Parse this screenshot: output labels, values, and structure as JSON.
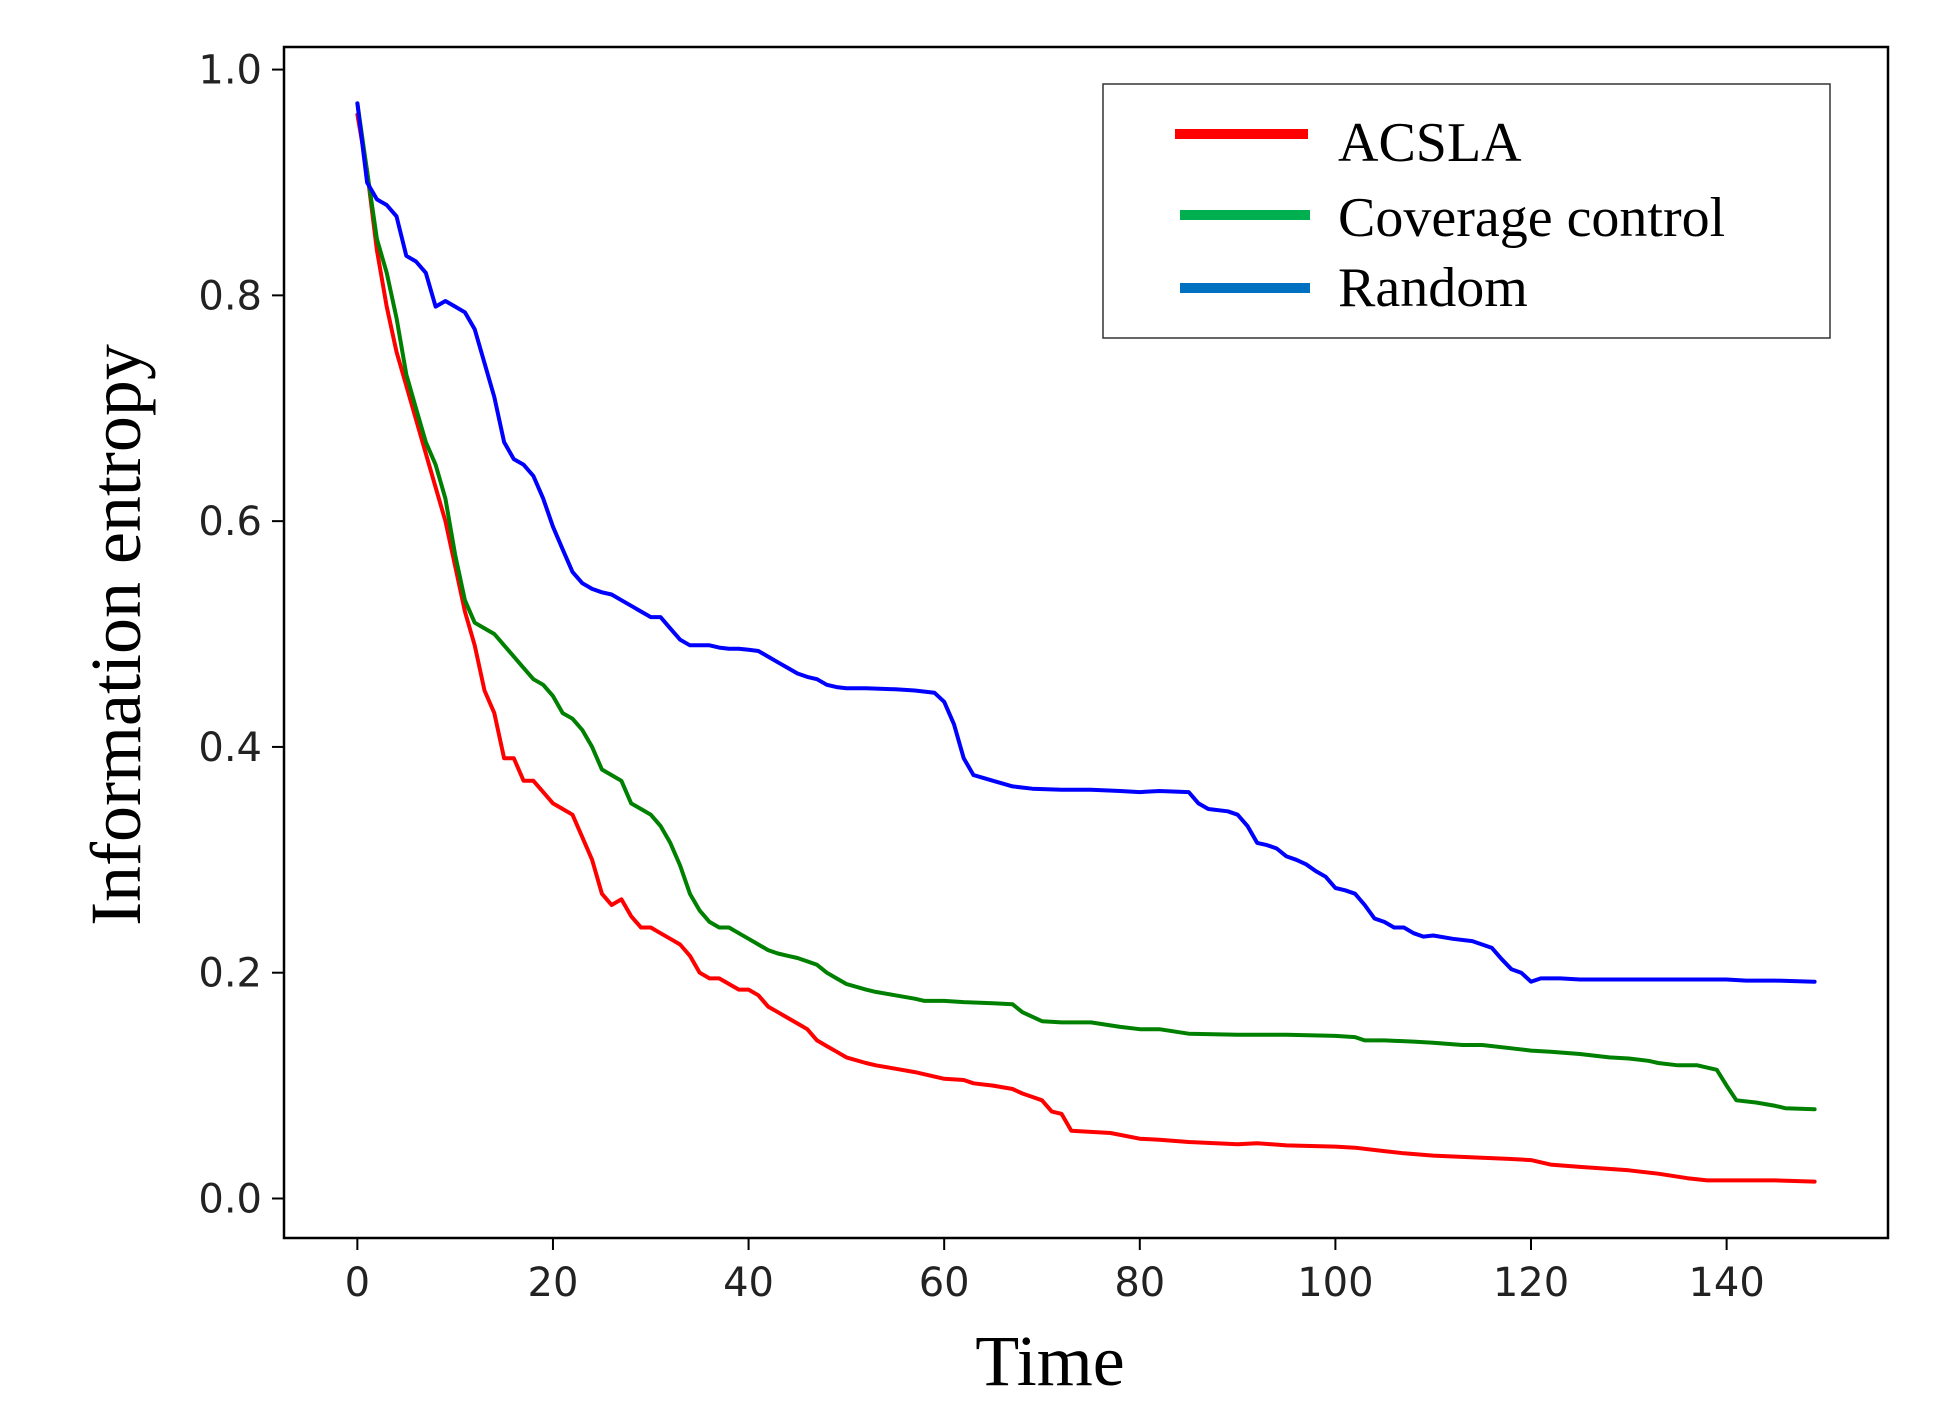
{
  "chart_data": {
    "type": "line",
    "title": "",
    "xlabel": "Time",
    "ylabel": "Information entropy",
    "xlim": [
      -7.5,
      156.5
    ],
    "ylim": [
      -0.035,
      1.02
    ],
    "xticks": [
      0,
      20,
      40,
      60,
      80,
      100,
      120,
      140
    ],
    "yticks": [
      0.0,
      0.2,
      0.4,
      0.6,
      0.8,
      1.0
    ],
    "xtick_labels": [
      "0",
      "20",
      "40",
      "60",
      "80",
      "100",
      "120",
      "140"
    ],
    "ytick_labels": [
      "0.0",
      "0.2",
      "0.4",
      "0.6",
      "0.8",
      "1.0"
    ],
    "grid": false,
    "legend_position": "top-right",
    "series": [
      {
        "name": "ACSLA",
        "color": "#ff0000",
        "points": [
          [
            0,
            0.96
          ],
          [
            1,
            0.91
          ],
          [
            2,
            0.84
          ],
          [
            3,
            0.79
          ],
          [
            4,
            0.75
          ],
          [
            5,
            0.72
          ],
          [
            6,
            0.69
          ],
          [
            7,
            0.66
          ],
          [
            8,
            0.63
          ],
          [
            9,
            0.6
          ],
          [
            10,
            0.56
          ],
          [
            11,
            0.52
          ],
          [
            12,
            0.49
          ],
          [
            13,
            0.45
          ],
          [
            14,
            0.43
          ],
          [
            15,
            0.39
          ],
          [
            16,
            0.39
          ],
          [
            17,
            0.37
          ],
          [
            18,
            0.37
          ],
          [
            19,
            0.36
          ],
          [
            20,
            0.35
          ],
          [
            21,
            0.345
          ],
          [
            22,
            0.34
          ],
          [
            23,
            0.32
          ],
          [
            24,
            0.3
          ],
          [
            25,
            0.27
          ],
          [
            26,
            0.26
          ],
          [
            27,
            0.265
          ],
          [
            28,
            0.25
          ],
          [
            29,
            0.24
          ],
          [
            30,
            0.24
          ],
          [
            31,
            0.235
          ],
          [
            32,
            0.23
          ],
          [
            33,
            0.225
          ],
          [
            34,
            0.215
          ],
          [
            35,
            0.2
          ],
          [
            36,
            0.195
          ],
          [
            37,
            0.195
          ],
          [
            38,
            0.19
          ],
          [
            39,
            0.185
          ],
          [
            40,
            0.185
          ],
          [
            41,
            0.18
          ],
          [
            42,
            0.17
          ],
          [
            43,
            0.165
          ],
          [
            44,
            0.16
          ],
          [
            45,
            0.155
          ],
          [
            46,
            0.15
          ],
          [
            47,
            0.14
          ],
          [
            48,
            0.135
          ],
          [
            49,
            0.13
          ],
          [
            50,
            0.125
          ],
          [
            52,
            0.12
          ],
          [
            53,
            0.118
          ],
          [
            55,
            0.115
          ],
          [
            57,
            0.112
          ],
          [
            58,
            0.11
          ],
          [
            60,
            0.106
          ],
          [
            62,
            0.105
          ],
          [
            63,
            0.102
          ],
          [
            65,
            0.1
          ],
          [
            67,
            0.097
          ],
          [
            68,
            0.093
          ],
          [
            69,
            0.09
          ],
          [
            70,
            0.087
          ],
          [
            71,
            0.077
          ],
          [
            72,
            0.075
          ],
          [
            73,
            0.06
          ],
          [
            75,
            0.059
          ],
          [
            77,
            0.058
          ],
          [
            80,
            0.053
          ],
          [
            82,
            0.052
          ],
          [
            85,
            0.05
          ],
          [
            90,
            0.048
          ],
          [
            92,
            0.049
          ],
          [
            95,
            0.047
          ],
          [
            100,
            0.046
          ],
          [
            102,
            0.045
          ],
          [
            105,
            0.042
          ],
          [
            107,
            0.04
          ],
          [
            110,
            0.038
          ],
          [
            115,
            0.036
          ],
          [
            118,
            0.035
          ],
          [
            120,
            0.034
          ],
          [
            122,
            0.03
          ],
          [
            125,
            0.028
          ],
          [
            130,
            0.025
          ],
          [
            133,
            0.022
          ],
          [
            136,
            0.018
          ],
          [
            138,
            0.016
          ],
          [
            140,
            0.016
          ],
          [
            143,
            0.016
          ],
          [
            145,
            0.016
          ],
          [
            149,
            0.015
          ]
        ]
      },
      {
        "name": "Coverage control",
        "color": "#008000",
        "legend_color": "#00b050",
        "points": [
          [
            0,
            0.97
          ],
          [
            1,
            0.91
          ],
          [
            2,
            0.85
          ],
          [
            3,
            0.82
          ],
          [
            4,
            0.78
          ],
          [
            5,
            0.73
          ],
          [
            6,
            0.7
          ],
          [
            7,
            0.67
          ],
          [
            8,
            0.65
          ],
          [
            9,
            0.62
          ],
          [
            10,
            0.57
          ],
          [
            11,
            0.53
          ],
          [
            12,
            0.51
          ],
          [
            13,
            0.505
          ],
          [
            14,
            0.5
          ],
          [
            15,
            0.49
          ],
          [
            16,
            0.48
          ],
          [
            17,
            0.47
          ],
          [
            18,
            0.46
          ],
          [
            19,
            0.455
          ],
          [
            20,
            0.445
          ],
          [
            21,
            0.43
          ],
          [
            22,
            0.425
          ],
          [
            23,
            0.415
          ],
          [
            24,
            0.4
          ],
          [
            25,
            0.38
          ],
          [
            26,
            0.375
          ],
          [
            27,
            0.37
          ],
          [
            28,
            0.35
          ],
          [
            29,
            0.345
          ],
          [
            30,
            0.34
          ],
          [
            31,
            0.33
          ],
          [
            32,
            0.315
          ],
          [
            33,
            0.295
          ],
          [
            34,
            0.27
          ],
          [
            35,
            0.255
          ],
          [
            36,
            0.245
          ],
          [
            37,
            0.24
          ],
          [
            38,
            0.24
          ],
          [
            39,
            0.235
          ],
          [
            40,
            0.23
          ],
          [
            41,
            0.225
          ],
          [
            42,
            0.22
          ],
          [
            43,
            0.217
          ],
          [
            44,
            0.215
          ],
          [
            45,
            0.213
          ],
          [
            46,
            0.21
          ],
          [
            47,
            0.207
          ],
          [
            48,
            0.2
          ],
          [
            49,
            0.195
          ],
          [
            50,
            0.19
          ],
          [
            52,
            0.185
          ],
          [
            53,
            0.183
          ],
          [
            55,
            0.18
          ],
          [
            57,
            0.177
          ],
          [
            58,
            0.175
          ],
          [
            60,
            0.175
          ],
          [
            62,
            0.174
          ],
          [
            65,
            0.173
          ],
          [
            67,
            0.172
          ],
          [
            68,
            0.165
          ],
          [
            70,
            0.157
          ],
          [
            72,
            0.156
          ],
          [
            75,
            0.156
          ],
          [
            78,
            0.152
          ],
          [
            80,
            0.15
          ],
          [
            82,
            0.15
          ],
          [
            85,
            0.146
          ],
          [
            90,
            0.145
          ],
          [
            95,
            0.145
          ],
          [
            100,
            0.144
          ],
          [
            102,
            0.143
          ],
          [
            103,
            0.14
          ],
          [
            105,
            0.14
          ],
          [
            108,
            0.139
          ],
          [
            110,
            0.138
          ],
          [
            113,
            0.136
          ],
          [
            115,
            0.136
          ],
          [
            118,
            0.133
          ],
          [
            120,
            0.131
          ],
          [
            122,
            0.13
          ],
          [
            125,
            0.128
          ],
          [
            128,
            0.125
          ],
          [
            130,
            0.124
          ],
          [
            132,
            0.122
          ],
          [
            133,
            0.12
          ],
          [
            135,
            0.118
          ],
          [
            137,
            0.118
          ],
          [
            139,
            0.114
          ],
          [
            140,
            0.1
          ],
          [
            141,
            0.087
          ],
          [
            143,
            0.085
          ],
          [
            145,
            0.082
          ],
          [
            146,
            0.08
          ],
          [
            149,
            0.079
          ]
        ]
      },
      {
        "name": "Random",
        "color": "#0000ff",
        "legend_color": "#0070c0",
        "points": [
          [
            0,
            0.97
          ],
          [
            1,
            0.9
          ],
          [
            2,
            0.885
          ],
          [
            3,
            0.88
          ],
          [
            4,
            0.87
          ],
          [
            5,
            0.835
          ],
          [
            6,
            0.83
          ],
          [
            7,
            0.82
          ],
          [
            8,
            0.79
          ],
          [
            9,
            0.795
          ],
          [
            10,
            0.79
          ],
          [
            11,
            0.785
          ],
          [
            12,
            0.77
          ],
          [
            13,
            0.74
          ],
          [
            14,
            0.71
          ],
          [
            15,
            0.67
          ],
          [
            16,
            0.655
          ],
          [
            17,
            0.65
          ],
          [
            18,
            0.64
          ],
          [
            19,
            0.62
          ],
          [
            20,
            0.595
          ],
          [
            21,
            0.575
          ],
          [
            22,
            0.555
          ],
          [
            23,
            0.545
          ],
          [
            24,
            0.54
          ],
          [
            25,
            0.537
          ],
          [
            26,
            0.535
          ],
          [
            27,
            0.53
          ],
          [
            28,
            0.525
          ],
          [
            29,
            0.52
          ],
          [
            30,
            0.515
          ],
          [
            31,
            0.515
          ],
          [
            32,
            0.505
          ],
          [
            33,
            0.495
          ],
          [
            34,
            0.49
          ],
          [
            35,
            0.49
          ],
          [
            36,
            0.49
          ],
          [
            37,
            0.488
          ],
          [
            38,
            0.487
          ],
          [
            39,
            0.487
          ],
          [
            40,
            0.486
          ],
          [
            41,
            0.485
          ],
          [
            42,
            0.48
          ],
          [
            43,
            0.475
          ],
          [
            44,
            0.47
          ],
          [
            45,
            0.465
          ],
          [
            46,
            0.462
          ],
          [
            47,
            0.46
          ],
          [
            48,
            0.455
          ],
          [
            49,
            0.453
          ],
          [
            50,
            0.452
          ],
          [
            52,
            0.452
          ],
          [
            55,
            0.451
          ],
          [
            57,
            0.45
          ],
          [
            59,
            0.448
          ],
          [
            60,
            0.44
          ],
          [
            61,
            0.42
          ],
          [
            62,
            0.39
          ],
          [
            63,
            0.375
          ],
          [
            65,
            0.37
          ],
          [
            67,
            0.365
          ],
          [
            69,
            0.363
          ],
          [
            72,
            0.362
          ],
          [
            75,
            0.362
          ],
          [
            78,
            0.361
          ],
          [
            80,
            0.36
          ],
          [
            82,
            0.361
          ],
          [
            85,
            0.36
          ],
          [
            86,
            0.35
          ],
          [
            87,
            0.345
          ],
          [
            89,
            0.343
          ],
          [
            90,
            0.34
          ],
          [
            91,
            0.33
          ],
          [
            92,
            0.315
          ],
          [
            93,
            0.313
          ],
          [
            94,
            0.31
          ],
          [
            95,
            0.303
          ],
          [
            96,
            0.3
          ],
          [
            97,
            0.296
          ],
          [
            98,
            0.29
          ],
          [
            99,
            0.285
          ],
          [
            100,
            0.275
          ],
          [
            101,
            0.273
          ],
          [
            102,
            0.27
          ],
          [
            103,
            0.26
          ],
          [
            104,
            0.248
          ],
          [
            105,
            0.245
          ],
          [
            106,
            0.24
          ],
          [
            107,
            0.24
          ],
          [
            108,
            0.235
          ],
          [
            109,
            0.232
          ],
          [
            110,
            0.233
          ],
          [
            112,
            0.23
          ],
          [
            114,
            0.228
          ],
          [
            116,
            0.222
          ],
          [
            117,
            0.212
          ],
          [
            118,
            0.203
          ],
          [
            119,
            0.2
          ],
          [
            120,
            0.192
          ],
          [
            121,
            0.195
          ],
          [
            123,
            0.195
          ],
          [
            125,
            0.194
          ],
          [
            130,
            0.194
          ],
          [
            135,
            0.194
          ],
          [
            140,
            0.194
          ],
          [
            142,
            0.193
          ],
          [
            145,
            0.193
          ],
          [
            149,
            0.192
          ]
        ]
      }
    ]
  }
}
